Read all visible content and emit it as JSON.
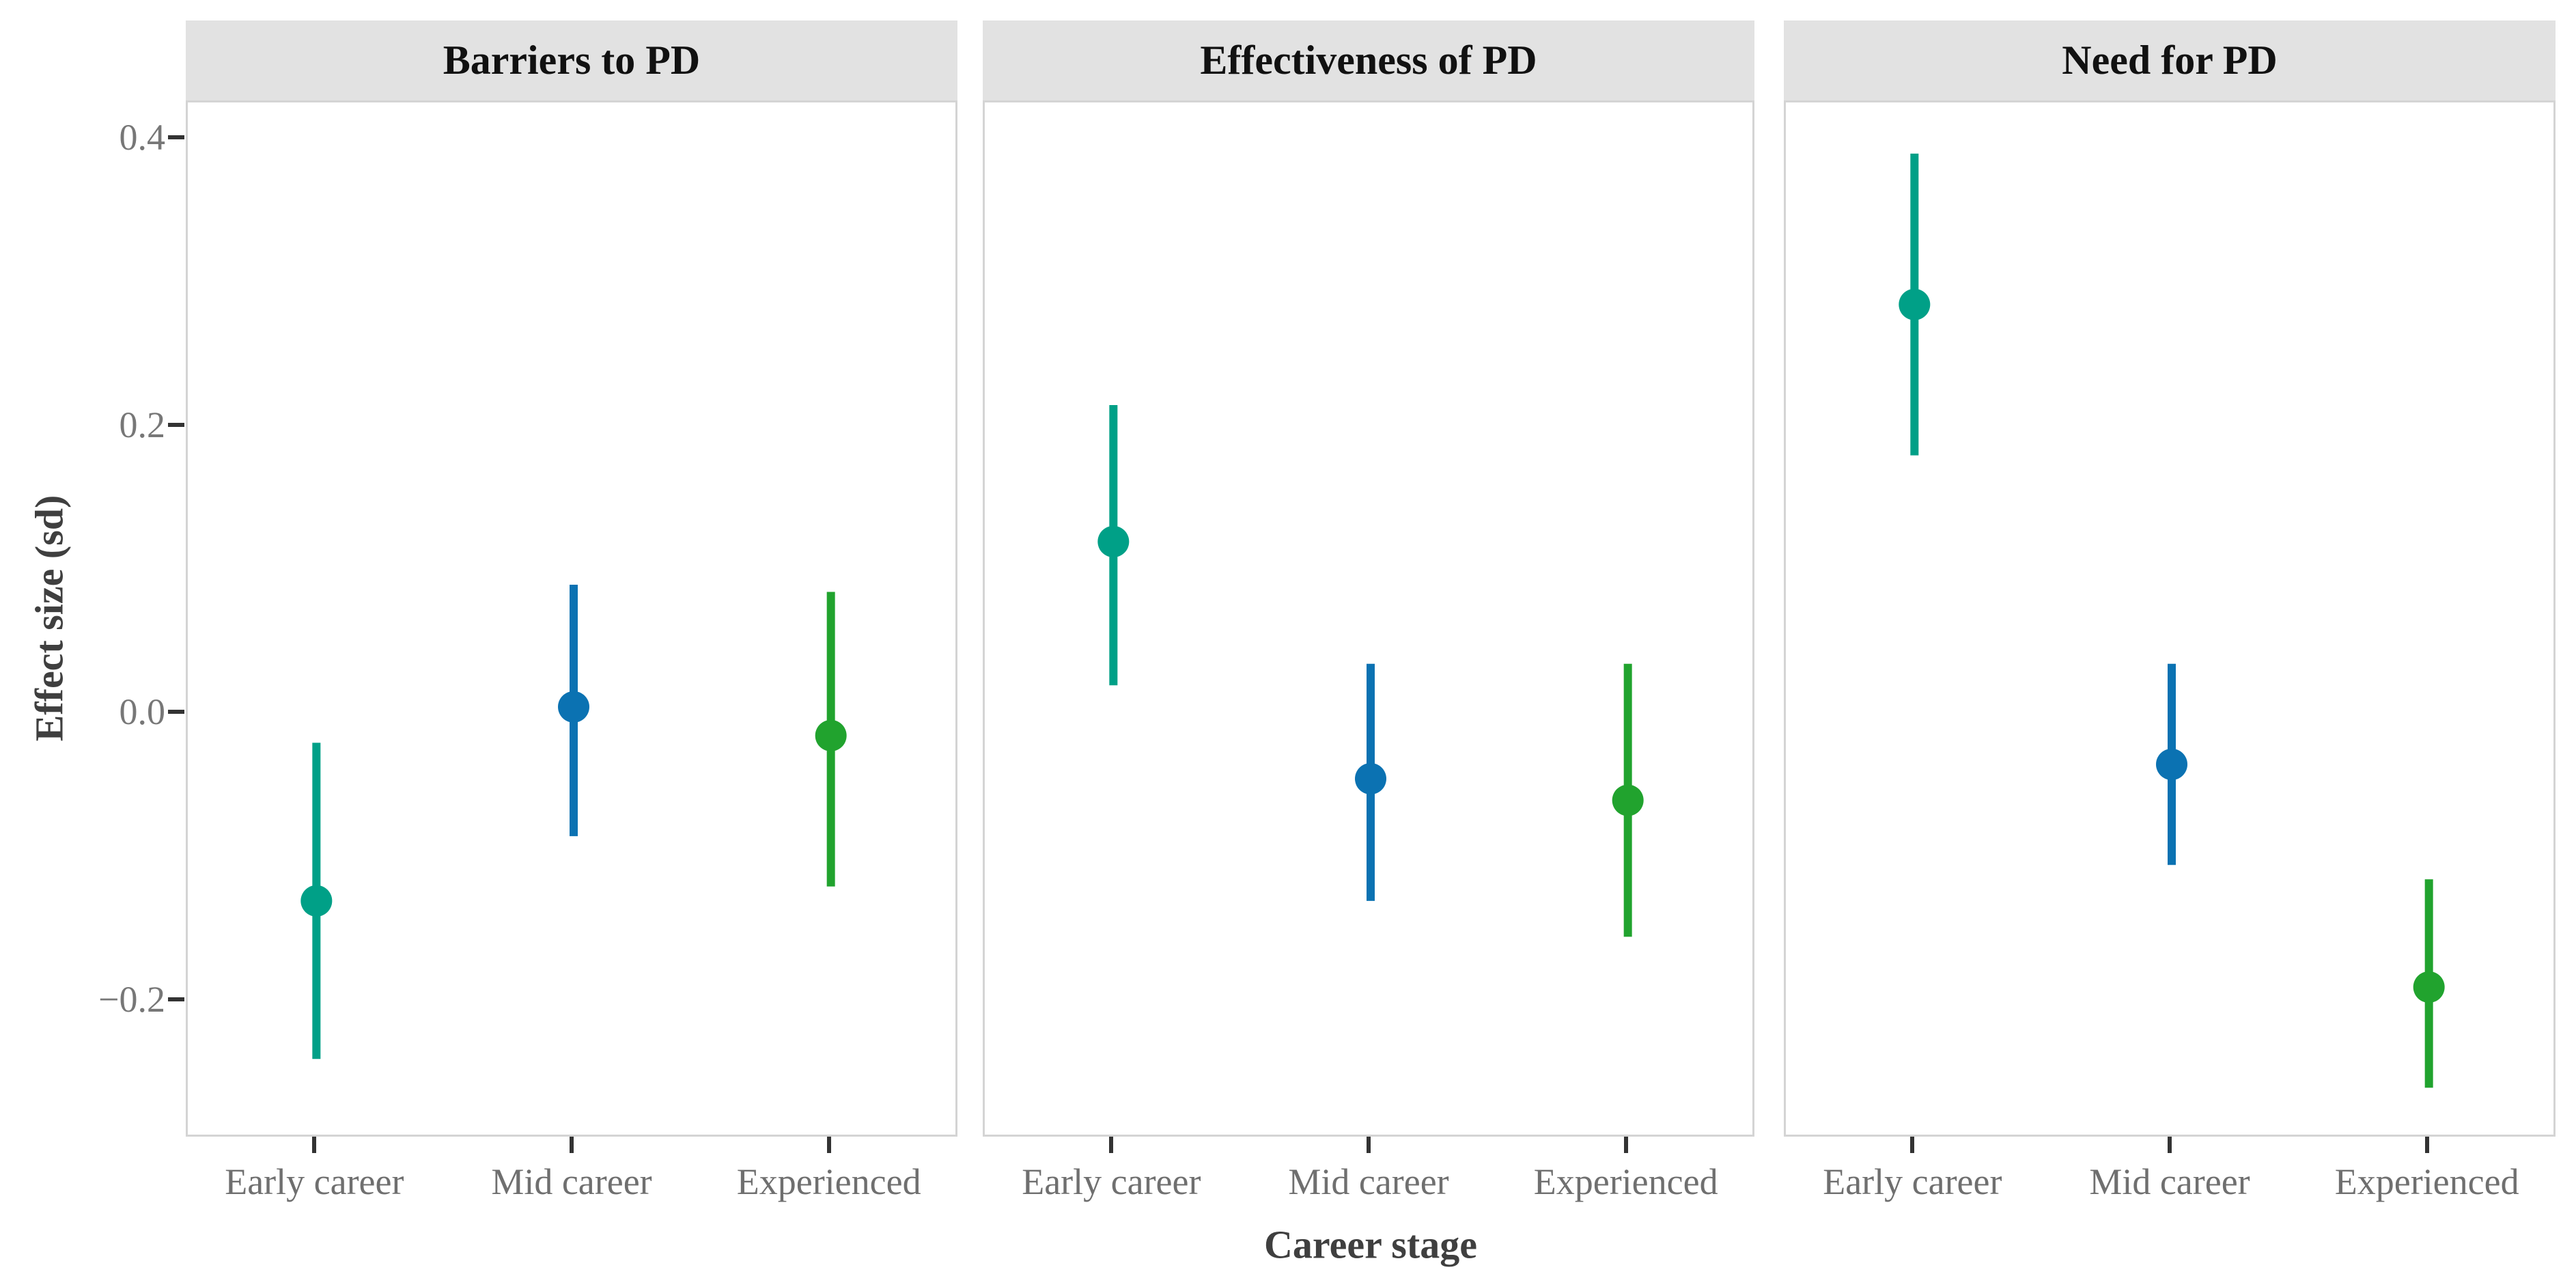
{
  "chart_data": {
    "type": "pointrange",
    "title": "",
    "facets": [
      {
        "label": "Barriers to PD",
        "points": [
          {
            "category": "Early career",
            "estimate": -0.13,
            "ci_low": -0.24,
            "ci_high": -0.02
          },
          {
            "category": "Mid career",
            "estimate": 0.005,
            "ci_low": -0.085,
            "ci_high": 0.09
          },
          {
            "category": "Experienced",
            "estimate": -0.015,
            "ci_low": -0.12,
            "ci_high": 0.085
          }
        ]
      },
      {
        "label": "Effectiveness of PD",
        "points": [
          {
            "category": "Early career",
            "estimate": 0.12,
            "ci_low": 0.02,
            "ci_high": 0.215
          },
          {
            "category": "Mid career",
            "estimate": -0.045,
            "ci_low": -0.13,
            "ci_high": 0.035
          },
          {
            "category": "Experienced",
            "estimate": -0.06,
            "ci_low": -0.155,
            "ci_high": 0.035
          }
        ]
      },
      {
        "label": "Need for PD",
        "points": [
          {
            "category": "Early career",
            "estimate": 0.285,
            "ci_low": 0.18,
            "ci_high": 0.39
          },
          {
            "category": "Mid career",
            "estimate": -0.035,
            "ci_low": -0.105,
            "ci_high": 0.035
          },
          {
            "category": "Experienced",
            "estimate": -0.19,
            "ci_low": -0.26,
            "ci_high": -0.115
          }
        ]
      }
    ],
    "categories": [
      "Early career",
      "Mid career",
      "Experienced"
    ],
    "category_colors": {
      "Early career": "#00A087",
      "Mid career": "#0B72B2",
      "Experienced": "#21A32E"
    },
    "xlabel": "Career stage",
    "ylabel": "Effect size (sd)",
    "yticks": [
      0.4,
      0.2,
      0.0,
      -0.2
    ],
    "ytick_labels": [
      "0.4",
      "0.2",
      "0.0",
      "−0.2"
    ],
    "ylim": [
      -0.2955,
      0.4256
    ],
    "grid": "off",
    "legend": "none"
  },
  "colors": {
    "strip_bg": "#e2e2e2",
    "panel_border": "#d4d4d4",
    "tick_mark": "#333333",
    "tick_label": "#777777",
    "axis_title": "#3f3f3f",
    "strip_title": "#111111",
    "background": "#ffffff"
  }
}
